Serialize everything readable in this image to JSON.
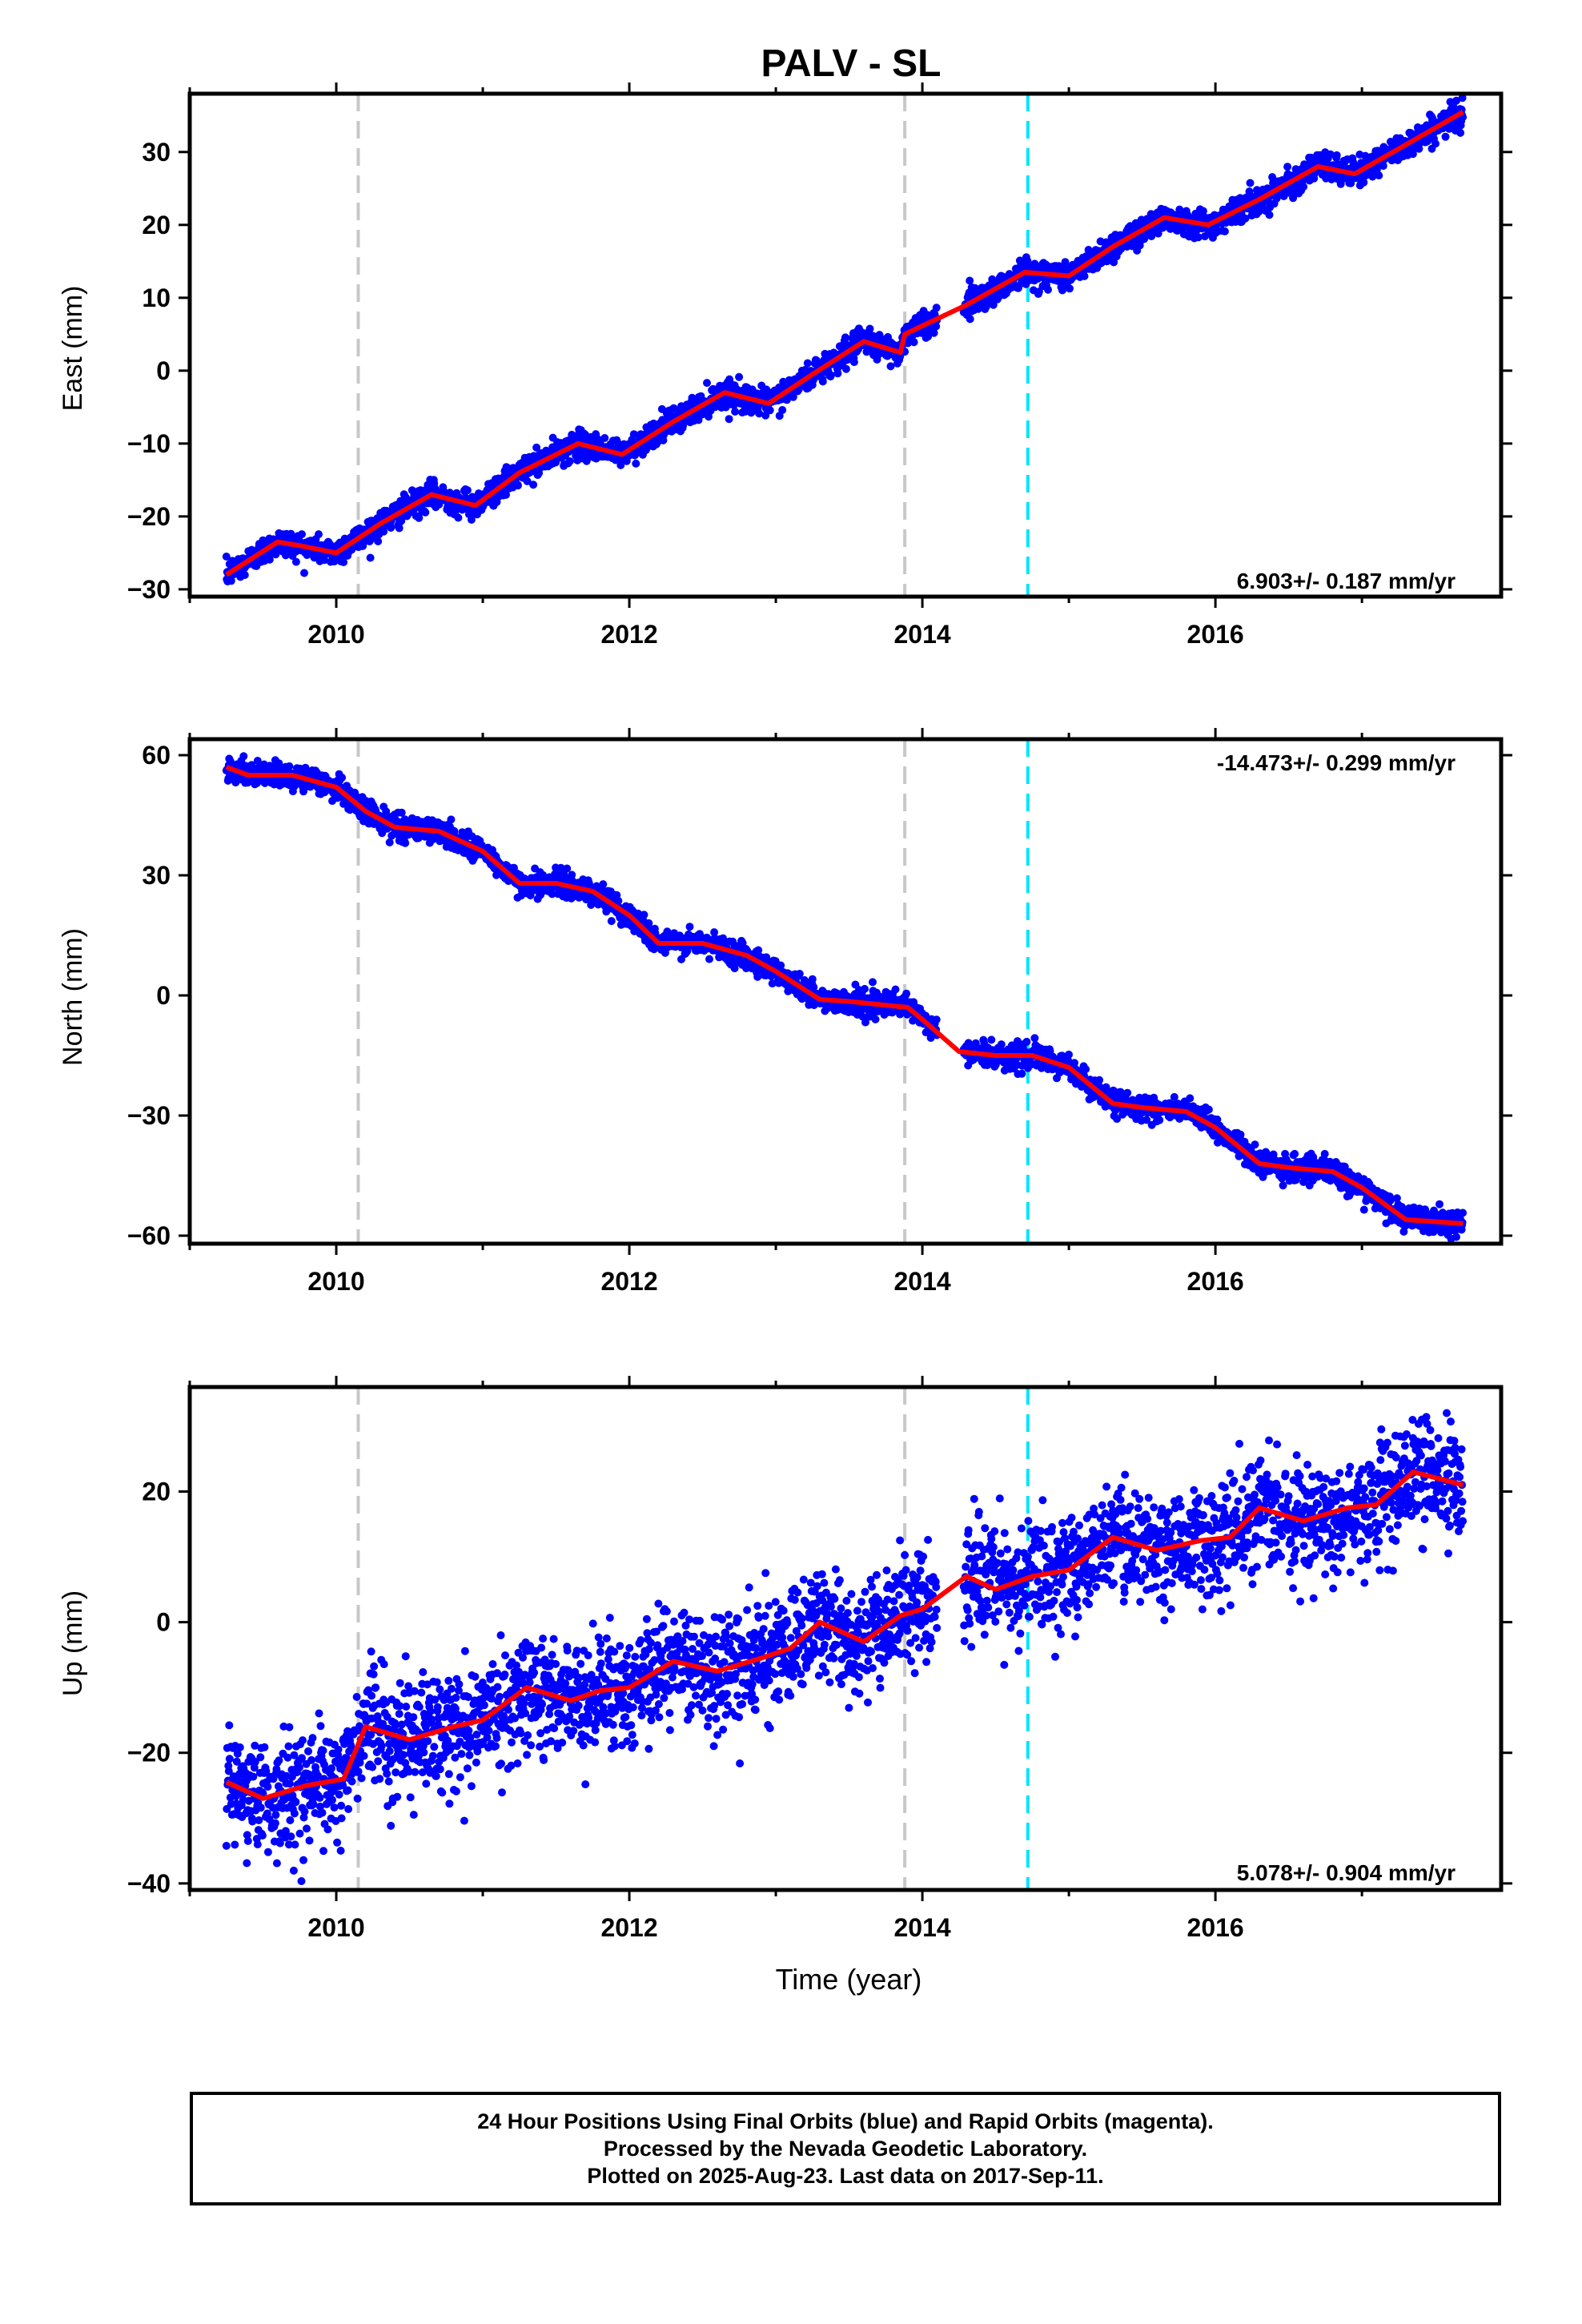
{
  "title": "PALV - SL",
  "chart_data": [
    {
      "type": "scatter",
      "ylabel": "East (mm)",
      "xlabel": "",
      "xlim": [
        2009.0,
        2017.95
      ],
      "ylim": [
        -31,
        38
      ],
      "yticks": [
        -30,
        -20,
        -10,
        0,
        10,
        20,
        30
      ],
      "xticks": [
        2010,
        2012,
        2014,
        2016
      ],
      "rate_label": "6.903+/- 0.187 mm/yr",
      "rate_position": "bottom-right",
      "data_start": 2009.25,
      "data_end": 2017.69,
      "noise": 0.9,
      "colors": {
        "points": "#0000ff",
        "model": "#ff0000"
      },
      "model_x": [
        2009.25,
        2009.6,
        2009.75,
        2010.0,
        2010.3,
        2010.65,
        2010.95,
        2011.25,
        2011.65,
        2011.95,
        2012.3,
        2012.65,
        2012.95,
        2013.25,
        2013.6,
        2013.85,
        2013.88,
        2014.3,
        2014.7,
        2015.0,
        2015.3,
        2015.65,
        2015.95,
        2016.3,
        2016.7,
        2016.95,
        2017.3,
        2017.69
      ],
      "model_y": [
        -28,
        -23.5,
        -24,
        -25,
        -21,
        -17,
        -18.5,
        -14,
        -10,
        -11.5,
        -7,
        -3,
        -4.5,
        -0.5,
        4,
        2.5,
        5,
        9,
        13.5,
        13,
        17,
        21,
        20,
        23.5,
        28,
        27,
        31,
        35.5
      ]
    },
    {
      "type": "scatter",
      "ylabel": "North (mm)",
      "xlabel": "",
      "xlim": [
        2009.0,
        2017.95
      ],
      "ylim": [
        -62,
        64
      ],
      "yticks": [
        -60,
        -30,
        0,
        30,
        60
      ],
      "xticks": [
        2010,
        2012,
        2014,
        2016
      ],
      "rate_label": "-14.473+/- 0.299 mm/yr",
      "rate_position": "top-right",
      "data_start": 2009.25,
      "data_end": 2017.69,
      "noise": 1.5,
      "colors": {
        "points": "#0000ff",
        "model": "#ff0000"
      },
      "model_x": [
        2009.25,
        2009.4,
        2009.7,
        2010.0,
        2010.2,
        2010.4,
        2010.7,
        2011.0,
        2011.25,
        2011.5,
        2011.75,
        2012.0,
        2012.2,
        2012.5,
        2012.8,
        2013.0,
        2013.3,
        2013.5,
        2013.9,
        2014.0,
        2014.25,
        2014.5,
        2014.75,
        2015.0,
        2015.3,
        2015.5,
        2015.8,
        2016.0,
        2016.3,
        2016.5,
        2016.8,
        2017.0,
        2017.3,
        2017.69
      ],
      "model_y": [
        57,
        55,
        55,
        52,
        46,
        42,
        41,
        36,
        28,
        28,
        26,
        20,
        13,
        13,
        10,
        6,
        -1,
        -1.5,
        -3,
        -6,
        -14,
        -15,
        -15,
        -18,
        -27,
        -28,
        -29,
        -33,
        -42,
        -43,
        -44,
        -48,
        -56,
        -57
      ]
    },
    {
      "type": "scatter",
      "ylabel": "Up (mm)",
      "xlabel": "Time (year)",
      "xlim": [
        2009.0,
        2017.95
      ],
      "ylim": [
        -41,
        36
      ],
      "yticks": [
        -40,
        -20,
        0,
        20
      ],
      "xticks": [
        2010,
        2012,
        2014,
        2016
      ],
      "rate_label": "5.078+/- 0.904 mm/yr",
      "rate_position": "bottom-right",
      "data_start": 2009.25,
      "data_end": 2017.69,
      "noise": 4.2,
      "colors": {
        "points": "#0000ff",
        "model": "#ff0000"
      },
      "model_x": [
        2009.25,
        2009.5,
        2009.8,
        2010.05,
        2010.2,
        2010.5,
        2010.8,
        2011.0,
        2011.3,
        2011.6,
        2011.8,
        2012.0,
        2012.3,
        2012.6,
        2012.9,
        2013.1,
        2013.3,
        2013.6,
        2013.85,
        2014.0,
        2014.3,
        2014.5,
        2014.75,
        2015.0,
        2015.3,
        2015.6,
        2015.9,
        2016.1,
        2016.3,
        2016.6,
        2016.9,
        2017.1,
        2017.35,
        2017.69
      ],
      "model_y": [
        -24.5,
        -27,
        -25,
        -24,
        -16,
        -18,
        -16,
        -15,
        -10,
        -12,
        -10.5,
        -10,
        -6,
        -7.5,
        -5.5,
        -4,
        0,
        -3,
        1,
        2,
        7,
        5,
        7,
        8,
        13,
        11,
        12.5,
        13,
        17.5,
        15.5,
        17.5,
        18,
        23,
        21
      ]
    }
  ],
  "events": [
    {
      "x": 2010.15,
      "color": "#c8c8c8"
    },
    {
      "x": 2013.88,
      "color": "#c8c8c8"
    },
    {
      "x": 2014.72,
      "color": "#00e5ff"
    }
  ],
  "footer": {
    "line1": "24 Hour Positions Using Final Orbits (blue) and Rapid Orbits (magenta).",
    "line2": "Processed by the Nevada Geodetic Laboratory.",
    "line3": "Plotted on 2025-Aug-23. Last data on 2017-Sep-11."
  }
}
